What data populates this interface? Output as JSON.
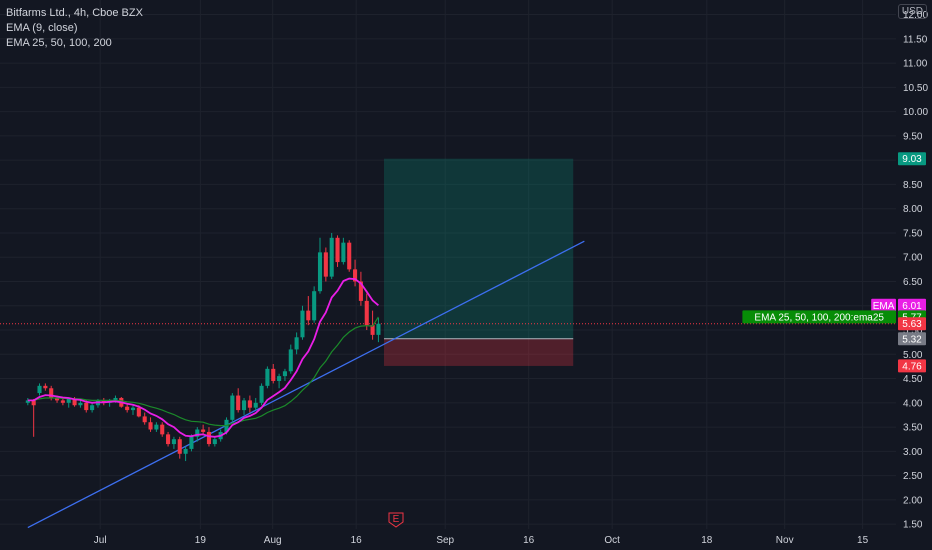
{
  "legend": {
    "symbol": "Bitfarms Ltd., 4h, Cboe BZX",
    "indicator1": "EMA (9, close)",
    "indicator2": "EMA 25, 50, 100, 200"
  },
  "currency": "USD",
  "event_marker": "E",
  "chart_data": {
    "type": "candlestick",
    "y_axis": {
      "ticks": [
        12.0,
        11.5,
        11.0,
        10.5,
        10.0,
        9.5,
        9.0,
        8.5,
        8.0,
        7.5,
        7.0,
        6.5,
        6.0,
        5.5,
        5.0,
        4.5,
        4.0,
        3.5,
        3.0,
        2.5,
        2.0,
        1.5
      ],
      "range": [
        1.4,
        12.3
      ]
    },
    "x_axis": {
      "ticks": [
        "Jul",
        "19",
        "Aug",
        "16",
        "Sep",
        "16",
        "Oct",
        "18",
        "Nov",
        "15"
      ],
      "range": [
        "2024-06-13",
        "2024-11-21"
      ]
    },
    "price_tags": [
      {
        "label": "",
        "value": "9.03",
        "bg": "#089981"
      },
      {
        "label": "EMA",
        "value": "6.01",
        "bg": "#e91ee6"
      },
      {
        "label": "EMA 25, 50, 100, 200:ema25",
        "value": "5.77",
        "bg": "#078d07"
      },
      {
        "label": "",
        "value": "5.63",
        "bg": "#f23645"
      },
      {
        "label": "",
        "value": "5.32",
        "bg": "#787b86"
      },
      {
        "label": "",
        "value": "4.76",
        "bg": "#f23645"
      }
    ],
    "position_box": {
      "entry": 5.32,
      "target": 9.03,
      "stop": 4.76,
      "from": "2024-08-21",
      "to": "2024-09-24"
    },
    "trendline": {
      "from": {
        "date": "2024-06-18",
        "price": 1.43
      },
      "to": {
        "date": "2024-09-26",
        "price": 7.33
      }
    },
    "current_price": 5.63,
    "candles": [
      [
        4.0,
        4.1,
        3.95,
        4.05
      ],
      [
        4.05,
        4.08,
        3.3,
        3.95
      ],
      [
        4.2,
        4.4,
        4.15,
        4.35
      ],
      [
        4.35,
        4.4,
        4.25,
        4.3
      ],
      [
        4.3,
        4.35,
        4.05,
        4.1
      ],
      [
        4.1,
        4.15,
        4.0,
        4.05
      ],
      [
        4.05,
        4.12,
        3.95,
        4.0
      ],
      [
        4.0,
        4.1,
        3.9,
        4.08
      ],
      [
        4.08,
        4.12,
        3.92,
        3.95
      ],
      [
        3.95,
        4.05,
        3.9,
        4.0
      ],
      [
        4.0,
        4.05,
        3.8,
        3.85
      ],
      [
        3.85,
        4.0,
        3.8,
        3.95
      ],
      [
        3.95,
        4.08,
        3.9,
        4.05
      ],
      [
        4.05,
        4.1,
        3.95,
        4.0
      ],
      [
        4.0,
        4.08,
        3.92,
        4.05
      ],
      [
        4.05,
        4.15,
        4.0,
        4.1
      ],
      [
        4.1,
        4.12,
        3.9,
        3.92
      ],
      [
        3.92,
        3.98,
        3.8,
        3.85
      ],
      [
        3.85,
        3.95,
        3.75,
        3.9
      ],
      [
        3.9,
        3.95,
        3.7,
        3.72
      ],
      [
        3.72,
        3.8,
        3.55,
        3.6
      ],
      [
        3.6,
        3.7,
        3.4,
        3.45
      ],
      [
        3.45,
        3.6,
        3.4,
        3.55
      ],
      [
        3.55,
        3.6,
        3.3,
        3.35
      ],
      [
        3.35,
        3.4,
        3.1,
        3.15
      ],
      [
        3.15,
        3.3,
        3.05,
        3.25
      ],
      [
        3.25,
        3.3,
        2.85,
        2.95
      ],
      [
        2.95,
        3.1,
        2.8,
        3.05
      ],
      [
        3.05,
        3.35,
        3.0,
        3.3
      ],
      [
        3.3,
        3.5,
        3.2,
        3.45
      ],
      [
        3.45,
        3.55,
        3.35,
        3.4
      ],
      [
        3.4,
        3.5,
        3.1,
        3.15
      ],
      [
        3.15,
        3.3,
        3.1,
        3.25
      ],
      [
        3.25,
        3.45,
        3.2,
        3.4
      ],
      [
        3.4,
        3.7,
        3.35,
        3.65
      ],
      [
        3.65,
        4.2,
        3.6,
        4.15
      ],
      [
        4.15,
        4.3,
        3.8,
        3.85
      ],
      [
        3.85,
        4.1,
        3.75,
        4.05
      ],
      [
        4.05,
        4.15,
        3.8,
        3.9
      ],
      [
        3.9,
        4.1,
        3.85,
        4.0
      ],
      [
        4.0,
        4.4,
        3.95,
        4.35
      ],
      [
        4.35,
        4.75,
        4.3,
        4.7
      ],
      [
        4.7,
        4.8,
        4.4,
        4.45
      ],
      [
        4.45,
        4.6,
        4.3,
        4.55
      ],
      [
        4.55,
        4.7,
        4.45,
        4.65
      ],
      [
        4.65,
        5.2,
        4.6,
        5.1
      ],
      [
        5.1,
        5.45,
        5.0,
        5.35
      ],
      [
        5.35,
        6.0,
        5.3,
        5.9
      ],
      [
        5.9,
        6.2,
        5.6,
        5.7
      ],
      [
        5.7,
        6.4,
        5.65,
        6.3
      ],
      [
        6.3,
        7.4,
        6.25,
        7.1
      ],
      [
        7.1,
        7.2,
        6.5,
        6.6
      ],
      [
        6.6,
        7.5,
        6.55,
        7.4
      ],
      [
        7.4,
        7.45,
        6.8,
        6.9
      ],
      [
        6.9,
        7.4,
        6.85,
        7.3
      ],
      [
        7.3,
        7.35,
        6.7,
        6.75
      ],
      [
        6.75,
        6.95,
        6.4,
        6.5
      ],
      [
        6.5,
        6.7,
        6.0,
        6.1
      ],
      [
        6.1,
        6.25,
        5.5,
        5.6
      ],
      [
        5.6,
        5.9,
        5.3,
        5.4
      ],
      [
        5.4,
        5.75,
        5.25,
        5.63
      ]
    ],
    "ema9": [
      4.05,
      4.05,
      4.12,
      4.16,
      4.15,
      4.13,
      4.11,
      4.1,
      4.07,
      4.06,
      4.02,
      4.0,
      4.01,
      4.01,
      4.02,
      4.03,
      4.01,
      3.98,
      3.96,
      3.92,
      3.86,
      3.78,
      3.73,
      3.66,
      3.56,
      3.5,
      3.39,
      3.32,
      3.31,
      3.34,
      3.35,
      3.31,
      3.3,
      3.32,
      3.39,
      3.54,
      3.6,
      3.69,
      3.73,
      3.79,
      3.9,
      4.06,
      4.14,
      4.22,
      4.31,
      4.47,
      4.65,
      4.9,
      5.06,
      5.31,
      5.67,
      5.86,
      6.17,
      6.31,
      6.51,
      6.56,
      6.55,
      6.46,
      6.29,
      6.11,
      6.01
    ],
    "ema25": [
      4.05,
      4.05,
      4.08,
      4.1,
      4.1,
      4.1,
      4.09,
      4.09,
      4.08,
      4.08,
      4.06,
      4.05,
      4.05,
      4.05,
      4.05,
      4.05,
      4.04,
      4.02,
      4.01,
      3.99,
      3.96,
      3.92,
      3.89,
      3.85,
      3.8,
      3.76,
      3.7,
      3.65,
      3.62,
      3.61,
      3.6,
      3.56,
      3.54,
      3.53,
      3.53,
      3.58,
      3.6,
      3.64,
      3.66,
      3.68,
      3.73,
      3.8,
      3.85,
      3.89,
      3.94,
      4.03,
      4.13,
      4.26,
      4.37,
      4.52,
      4.72,
      4.86,
      5.05,
      5.19,
      5.35,
      5.46,
      5.54,
      5.58,
      5.59,
      5.58,
      5.77
    ]
  }
}
